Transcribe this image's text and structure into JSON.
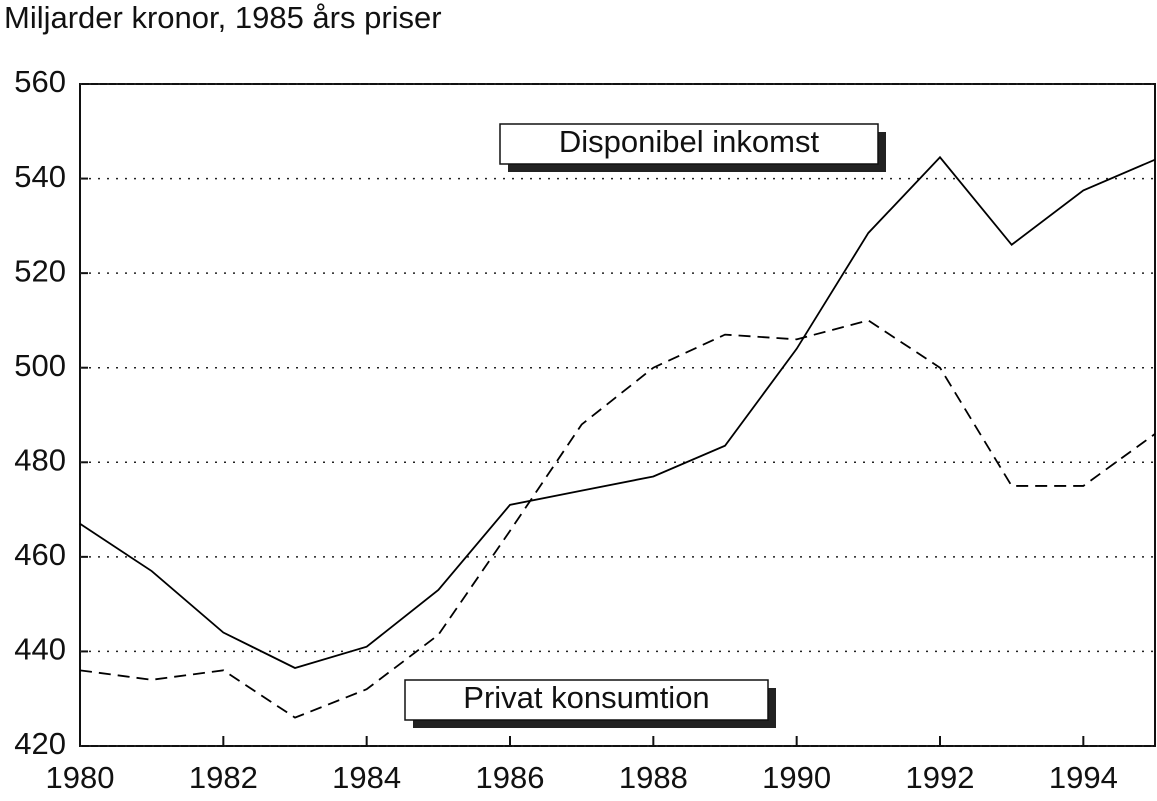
{
  "chart_data": {
    "type": "line",
    "title": "Miljarder kronor, 1985 års priser",
    "x": [
      1980,
      1981,
      1982,
      1983,
      1984,
      1985,
      1986,
      1987,
      1988,
      1989,
      1990,
      1991,
      1992,
      1993,
      1994,
      1995
    ],
    "series": [
      {
        "name": "Disponibel inkomst",
        "color": "#000000",
        "dash": false,
        "values": [
          467,
          457,
          444,
          436.5,
          441,
          453,
          471,
          474,
          477,
          483.5,
          504,
          528.5,
          544.5,
          526,
          537.5,
          544
        ]
      },
      {
        "name": "Privat konsumtion",
        "color": "#000000",
        "dash": true,
        "values": [
          436,
          434,
          436,
          426,
          432,
          443.5,
          465.5,
          488,
          500,
          507,
          506,
          510,
          500,
          475,
          475,
          486
        ]
      }
    ],
    "xlim": [
      1980,
      1995
    ],
    "xticks": [
      1980,
      1982,
      1984,
      1986,
      1988,
      1990,
      1992,
      1994
    ],
    "ylim": [
      420,
      560
    ],
    "yticks": [
      420,
      440,
      460,
      480,
      500,
      520,
      540,
      560
    ],
    "grid": true
  }
}
